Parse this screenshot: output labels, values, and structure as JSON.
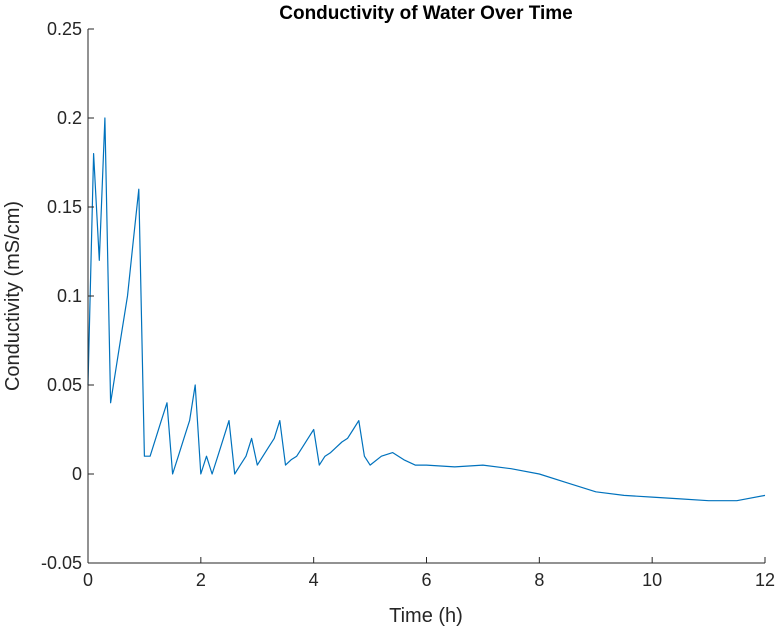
{
  "chart_data": {
    "type": "line",
    "title": "Conductivity of Water Over Time",
    "xlabel": "Time (h)",
    "ylabel": "Conductivity (mS/cm)",
    "xlim": [
      0,
      12
    ],
    "ylim": [
      -0.05,
      0.25
    ],
    "xticks": [
      "0",
      "2",
      "4",
      "6",
      "8",
      "10",
      "12"
    ],
    "yticks": [
      "-0.05",
      "0",
      "0.05",
      "0.1",
      "0.15",
      "0.2",
      "0.25"
    ],
    "grid": false,
    "legend": "none",
    "series": [
      {
        "color": "#0072BD",
        "x": [
          0.0,
          0.1,
          0.2,
          0.3,
          0.4,
          0.5,
          0.6,
          0.7,
          0.8,
          0.9,
          1.0,
          1.1,
          1.2,
          1.3,
          1.4,
          1.5,
          1.6,
          1.7,
          1.8,
          1.9,
          2.0,
          2.1,
          2.2,
          2.3,
          2.4,
          2.5,
          2.6,
          2.7,
          2.8,
          2.9,
          3.0,
          3.1,
          3.2,
          3.3,
          3.4,
          3.5,
          3.6,
          3.7,
          3.8,
          3.9,
          4.0,
          4.1,
          4.2,
          4.3,
          4.4,
          4.5,
          4.6,
          4.7,
          4.8,
          4.9,
          5.0,
          5.2,
          5.4,
          5.6,
          5.8,
          6.0,
          6.5,
          7.0,
          7.5,
          8.0,
          8.5,
          9.0,
          9.5,
          10.0,
          10.5,
          11.0,
          11.5,
          12.0
        ],
        "y": [
          0.05,
          0.18,
          0.12,
          0.2,
          0.04,
          0.06,
          0.08,
          0.1,
          0.13,
          0.16,
          0.01,
          0.01,
          0.02,
          0.03,
          0.04,
          0.0,
          0.01,
          0.02,
          0.03,
          0.05,
          0.0,
          0.01,
          0.0,
          0.01,
          0.02,
          0.03,
          0.0,
          0.005,
          0.01,
          0.02,
          0.005,
          0.01,
          0.015,
          0.02,
          0.03,
          0.005,
          0.008,
          0.01,
          0.015,
          0.02,
          0.025,
          0.005,
          0.01,
          0.012,
          0.015,
          0.018,
          0.02,
          0.025,
          0.03,
          0.01,
          0.005,
          0.01,
          0.012,
          0.008,
          0.005,
          0.005,
          0.004,
          0.005,
          0.003,
          0.0,
          -0.005,
          -0.01,
          -0.012,
          -0.013,
          -0.014,
          -0.015,
          -0.015,
          -0.012
        ]
      }
    ]
  }
}
